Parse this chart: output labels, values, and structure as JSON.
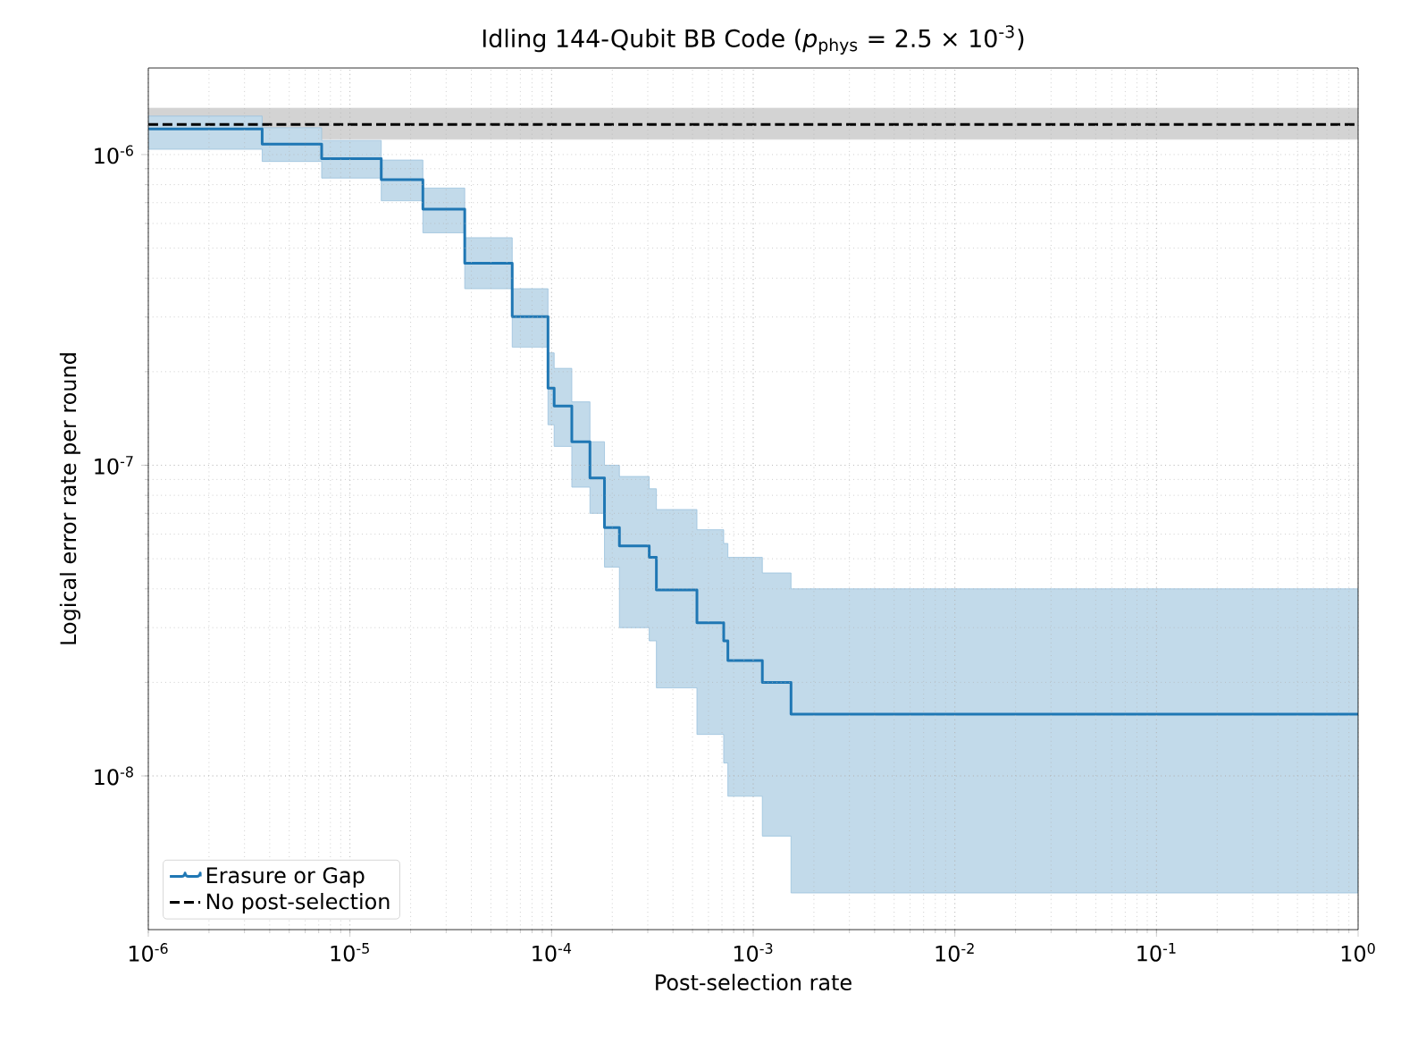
{
  "chart_data": {
    "type": "step",
    "title": "Idling 144-Qubit BB Code (*p*$_{phys}$ = 2.5 × 10$^{-3}$)",
    "xlabel": "Post-selection rate",
    "ylabel": "Logical error rate per round",
    "log": "xy",
    "grid": true,
    "legend": "bottom left",
    "marker": "none",
    "xlim": [
      1e-06,
      1
    ],
    "ylim": [
      3.2e-09,
      1.9e-06
    ],
    "xticks": [
      {
        "value": 1e-06,
        "label": "10$^{-6}$"
      },
      {
        "value": 1e-05,
        "label": "10$^{-5}$"
      },
      {
        "value": 0.0001,
        "label": "10$^{-4}$"
      },
      {
        "value": 0.001,
        "label": "10$^{-3}$"
      },
      {
        "value": 0.01,
        "label": "10$^{-2}$"
      },
      {
        "value": 0.1,
        "label": "10$^{-1}$"
      },
      {
        "value": 1,
        "label": "10$^{0}$"
      }
    ],
    "yticks": [
      {
        "value": 1e-08,
        "label": "10$^{-8}$"
      },
      {
        "value": 1e-07,
        "label": "10$^{-7}$"
      },
      {
        "value": 1e-06,
        "label": "10$^{-6}$"
      }
    ],
    "series": [
      {
        "name": "Erasure or Gap",
        "color": "#1f77b4",
        "line_style": "solid",
        "x": [
          1e-06,
          3.67e-06,
          7.24e-06,
          1.43e-05,
          2.3e-05,
          3.71e-05,
          6.38e-05,
          9.6e-05,
          0.000103,
          0.000126,
          0.000155,
          0.000183,
          0.000217,
          0.000305,
          0.000331,
          0.000526,
          0.000714,
          0.000749,
          0.00111,
          0.00154,
          1
        ],
        "values": [
          1.21e-06,
          1.08e-06,
          9.7e-07,
          8.3e-07,
          6.67e-07,
          4.47e-07,
          3.01e-07,
          1.77e-07,
          1.55e-07,
          1.19e-07,
          9.1e-08,
          6.3e-08,
          5.5e-08,
          5.05e-08,
          3.97e-08,
          3.11e-08,
          2.72e-08,
          2.35e-08,
          2e-08,
          1.58e-08,
          1.58e-08
        ],
        "lower": [
          1.04e-06,
          9.5e-07,
          8.4e-07,
          7.1e-07,
          5.6e-07,
          3.7e-07,
          2.4e-07,
          1.35e-07,
          1.15e-07,
          8.5e-08,
          7e-08,
          4.7e-08,
          3e-08,
          2.72e-08,
          1.92e-08,
          1.36e-08,
          1.1e-08,
          8.6e-09,
          6.4e-09,
          4.2e-09,
          4.2e-09
        ],
        "upper": [
          1.33e-06,
          1.22e-06,
          1.11e-06,
          9.6e-07,
          7.8e-07,
          5.4e-07,
          3.7e-07,
          2.3e-07,
          2.05e-07,
          1.6e-07,
          1.19e-07,
          1e-07,
          9.2e-08,
          8.4e-08,
          7.2e-08,
          6.2e-08,
          5.6e-08,
          5.05e-08,
          4.5e-08,
          4e-08,
          4e-08
        ]
      }
    ],
    "ref_lines": [
      {
        "axis": "y",
        "value": 1.25e-06,
        "label": "No post-selection",
        "color": "#000000",
        "line_style": "dashed"
      }
    ],
    "bands": [
      {
        "axis": "y",
        "from": 1.12e-06,
        "to": 1.41e-06,
        "color": "#d3d3d3"
      }
    ]
  }
}
